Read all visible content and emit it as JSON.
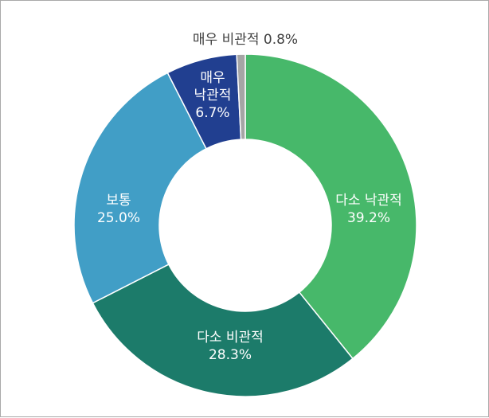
{
  "chart_data": {
    "type": "pie",
    "variant": "donut",
    "title": "",
    "slices": [
      {
        "label": "다소 낙관적",
        "value": 39.2,
        "value_label": "39.2%",
        "color": "#47b86a",
        "label_position": "inside"
      },
      {
        "label": "다소 비관적",
        "value": 28.3,
        "value_label": "28.3%",
        "color": "#1c7b6a",
        "label_position": "inside"
      },
      {
        "label": "보통",
        "value": 25.0,
        "value_label": "25.0%",
        "color": "#419ec6",
        "label_position": "inside"
      },
      {
        "label": "매우 낙관적",
        "value": 6.7,
        "value_label": "6.7%",
        "color": "#213f90",
        "label_position": "inside"
      },
      {
        "label": "매우 비관적",
        "value": 0.8,
        "value_label": "0.8%",
        "color": "#a5a5a5",
        "label_position": "outside"
      }
    ],
    "start_angle": "12 o'clock",
    "direction": "clockwise",
    "slice_border_color": "#ffffff",
    "legend": "none"
  }
}
